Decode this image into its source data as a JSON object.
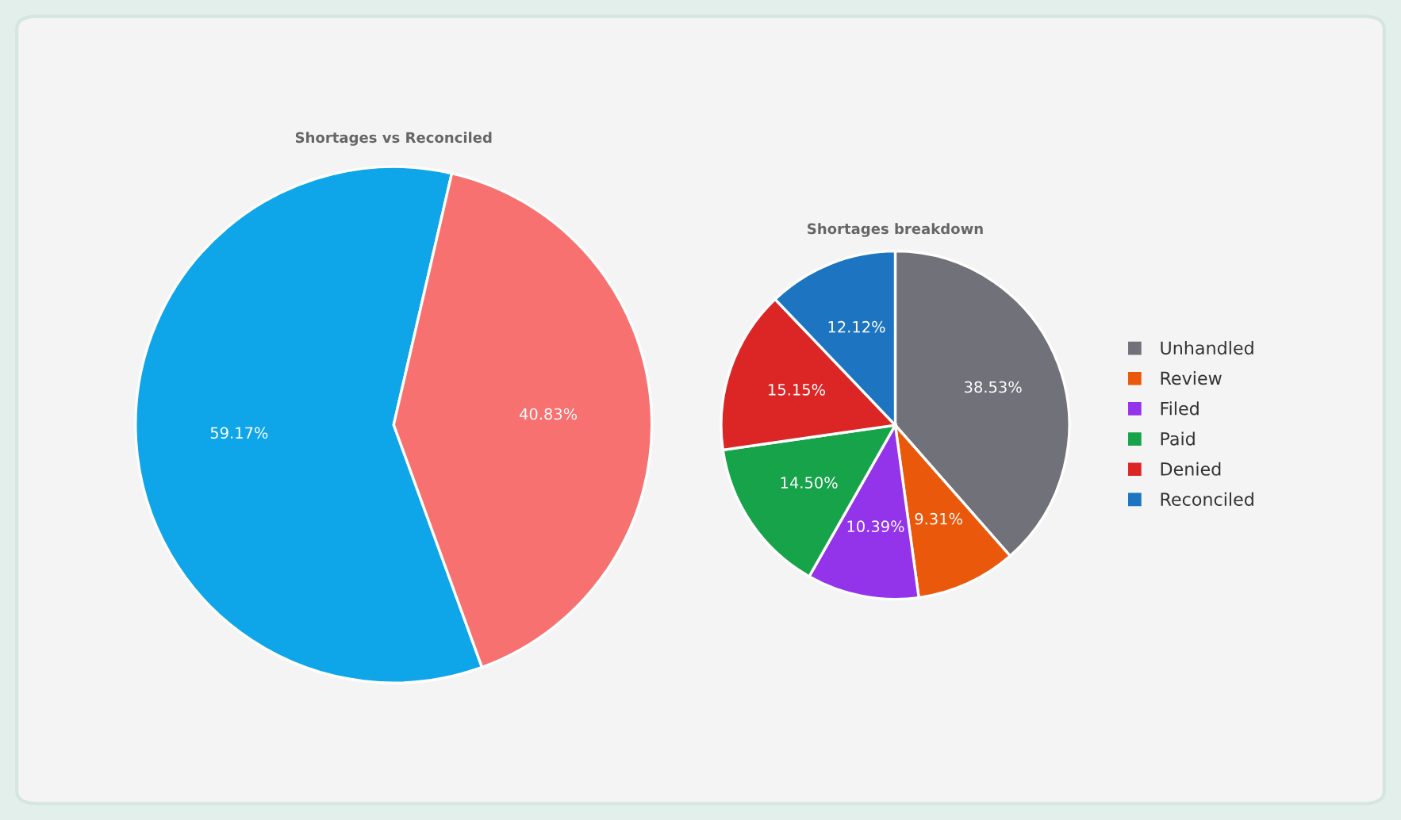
{
  "chart_data": [
    {
      "type": "pie",
      "title": "Shortages vs Reconciled",
      "categories": [
        null,
        null
      ],
      "values": [
        59.17,
        40.83
      ],
      "colors": [
        "#0ea5e9",
        "#f87171"
      ],
      "value_labels": [
        "59.17%",
        "40.83%"
      ],
      "legend": false
    },
    {
      "type": "pie",
      "title": "Shortages breakdown",
      "categories": [
        "Unhandled",
        "Review",
        "Filed",
        "Paid",
        "Denied",
        "Reconciled"
      ],
      "values": [
        38.53,
        9.31,
        10.39,
        14.5,
        15.15,
        12.12
      ],
      "colors": [
        "#71717a",
        "#ea580c",
        "#9333ea",
        "#16a34a",
        "#dc2626",
        "#1d74c0"
      ],
      "value_labels": [
        "38.53%",
        "9.31%",
        "10.39%",
        "14.50%",
        "15.15%",
        "12.12%"
      ],
      "legend": "right"
    }
  ]
}
